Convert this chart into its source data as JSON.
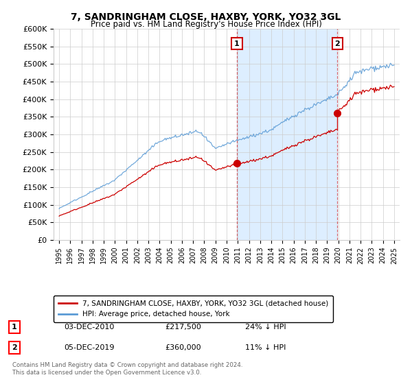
{
  "title": "7, SANDRINGHAM CLOSE, HAXBY, YORK, YO32 3GL",
  "subtitle": "Price paid vs. HM Land Registry's House Price Index (HPI)",
  "legend_line1": "7, SANDRINGHAM CLOSE, HAXBY, YORK, YO32 3GL (detached house)",
  "legend_line2": "HPI: Average price, detached house, York",
  "annotation1_label": "1",
  "annotation1_date": "03-DEC-2010",
  "annotation1_price": "£217,500",
  "annotation1_hpi": "24% ↓ HPI",
  "annotation2_label": "2",
  "annotation2_date": "05-DEC-2019",
  "annotation2_price": "£360,000",
  "annotation2_hpi": "11% ↓ HPI",
  "footnote": "Contains HM Land Registry data © Crown copyright and database right 2024.\nThis data is licensed under the Open Government Licence v3.0.",
  "sale1_x": 2010.92,
  "sale1_y": 217500,
  "sale2_x": 2019.92,
  "sale2_y": 360000,
  "ylim": [
    0,
    600000
  ],
  "xlim": [
    1994.5,
    2025.5
  ],
  "yticks": [
    0,
    50000,
    100000,
    150000,
    200000,
    250000,
    300000,
    350000,
    400000,
    450000,
    500000,
    550000,
    600000
  ],
  "ytick_labels": [
    "£0",
    "£50K",
    "£100K",
    "£150K",
    "£200K",
    "£250K",
    "£300K",
    "£350K",
    "£400K",
    "£450K",
    "£500K",
    "£550K",
    "£600K"
  ],
  "xticks": [
    1995,
    1996,
    1997,
    1998,
    1999,
    2000,
    2001,
    2002,
    2003,
    2004,
    2005,
    2006,
    2007,
    2008,
    2009,
    2010,
    2011,
    2012,
    2013,
    2014,
    2015,
    2016,
    2017,
    2018,
    2019,
    2020,
    2021,
    2022,
    2023,
    2024,
    2025
  ],
  "hpi_color": "#5b9bd5",
  "sale_color": "#cc0000",
  "vline_color": "#cc0000",
  "shade_color": "#ddeeff",
  "background_color": "#ffffff",
  "grid_color": "#cccccc"
}
